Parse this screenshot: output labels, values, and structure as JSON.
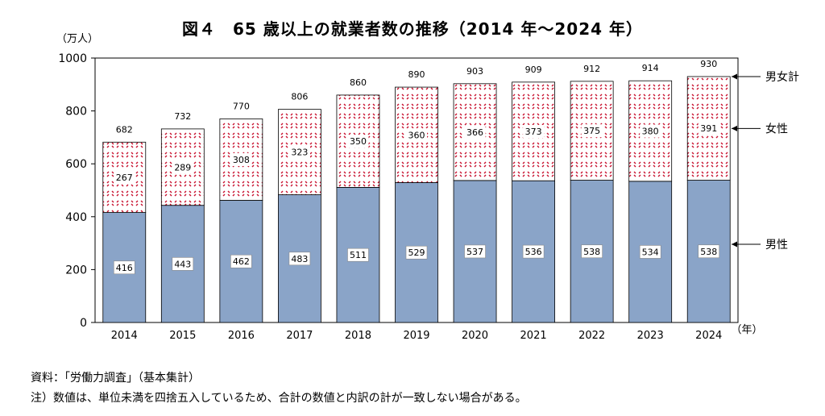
{
  "chart_data": {
    "type": "bar",
    "stacked": true,
    "title": "図４　65 歳以上の就業者数の推移（2014 年～2024 年）",
    "ylabel": "（万人）",
    "xlabel": "（年）",
    "ylim": [
      0,
      1000
    ],
    "yticks": [
      "0",
      "200",
      "400",
      "600",
      "800",
      "1000"
    ],
    "grid": false,
    "categories": [
      "2014",
      "2015",
      "2016",
      "2017",
      "2018",
      "2019",
      "2020",
      "2021",
      "2022",
      "2023",
      "2024"
    ],
    "series": [
      {
        "name": "男性",
        "values": [
          416,
          443,
          462,
          483,
          511,
          529,
          537,
          536,
          538,
          534,
          538
        ],
        "color": "#8aa4c8"
      },
      {
        "name": "女性",
        "values": [
          267,
          289,
          308,
          323,
          350,
          360,
          366,
          373,
          375,
          380,
          391
        ],
        "color": "#c8102e"
      }
    ],
    "totals_label": "男女計",
    "totals": [
      682,
      732,
      770,
      806,
      860,
      890,
      903,
      909,
      912,
      914,
      930
    ]
  },
  "notes": {
    "source": "資料：「労働力調査」（基本集計）",
    "note1": "注）数値は、単位未満を四捨五入しているため、合計の数値と内訳の計が一致しない場合がある。"
  }
}
